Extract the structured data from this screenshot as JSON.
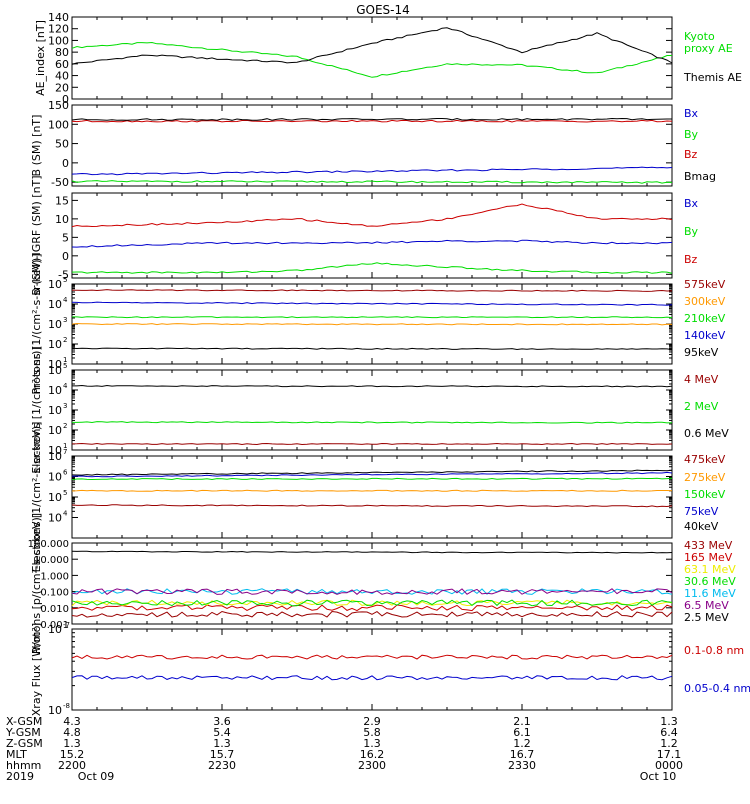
{
  "title": "GOES-14",
  "x_axis": {
    "tick_labels": [
      "2200",
      "2230",
      "2300",
      "2330",
      "0000"
    ],
    "date_labels": [
      "Oct 09",
      "Oct 10"
    ],
    "year": "2019",
    "row_labels": [
      "X-GSM",
      "Y-GSM",
      "Z-GSM",
      "MLT",
      "hhmm",
      "2019"
    ],
    "rows": {
      "X-GSM": [
        "4.3",
        "3.6",
        "2.9",
        "2.1",
        "1.3"
      ],
      "Y-GSM": [
        "4.8",
        "5.4",
        "5.8",
        "6.1",
        "6.4"
      ],
      "Z-GSM": [
        "1.3",
        "1.3",
        "1.3",
        "1.2",
        "1.2"
      ],
      "MLT": [
        "15.2",
        "15.7",
        "16.2",
        "16.7",
        "17.1"
      ],
      "hhmm": [
        "2200",
        "2230",
        "2300",
        "2330",
        "0000"
      ]
    }
  },
  "colors": {
    "black": "#000000",
    "green": "#00dd00",
    "red": "#cc0000",
    "blue": "#0000cc",
    "orange": "#ff9900",
    "darkred": "#990000",
    "cyan": "#00bbee",
    "yellow": "#eeee00",
    "purple": "#880088"
  },
  "chart_data": [
    {
      "type": "line",
      "ylabel": "AE_index [nT]",
      "ylim": [
        0,
        140
      ],
      "scale": "linear",
      "yticks": [
        "0",
        "20",
        "40",
        "60",
        "80",
        "100",
        "120",
        "140"
      ],
      "x": [
        "22:00",
        "22:15",
        "22:30",
        "22:45",
        "23:00",
        "23:15",
        "23:30",
        "23:45",
        "00:00"
      ],
      "series": [
        {
          "name": "Kyoto proxy AE",
          "color": "green",
          "values": [
            88,
            96,
            84,
            72,
            38,
            60,
            58,
            44,
            75
          ]
        },
        {
          "name": "Themis AE",
          "color": "black",
          "values": [
            60,
            75,
            68,
            62,
            95,
            122,
            80,
            112,
            62
          ]
        }
      ]
    },
    {
      "type": "line",
      "ylabel": "B (SM) [nT]",
      "ylim": [
        -60,
        150
      ],
      "scale": "linear",
      "yticks": [
        "-50",
        "0",
        "50",
        "100",
        "150"
      ],
      "x": [
        "22:00",
        "23:00",
        "00:00"
      ],
      "series": [
        {
          "name": "Bx",
          "color": "blue",
          "values": [
            -30,
            -22,
            -12
          ]
        },
        {
          "name": "By",
          "color": "green",
          "values": [
            -48,
            -49,
            -51
          ]
        },
        {
          "name": "Bz",
          "color": "red",
          "values": [
            108,
            108,
            108
          ]
        },
        {
          "name": "Bmag",
          "color": "black",
          "values": [
            112,
            113,
            113
          ]
        }
      ]
    },
    {
      "type": "line",
      "ylabel": "B (SM)-IGRF (SM) [nT]",
      "ylim": [
        -6,
        17
      ],
      "scale": "linear",
      "yticks": [
        "-5",
        "0",
        "5",
        "10",
        "15"
      ],
      "x": [
        "22:00",
        "22:15",
        "22:30",
        "22:45",
        "23:00",
        "23:15",
        "23:30",
        "23:45",
        "00:00"
      ],
      "series": [
        {
          "name": "Bx",
          "color": "blue",
          "values": [
            2.5,
            3,
            3.5,
            3.5,
            3.5,
            4,
            4,
            3.5,
            3.5
          ]
        },
        {
          "name": "By",
          "color": "green",
          "values": [
            -4.5,
            -4.5,
            -4.5,
            -4,
            -2,
            -3,
            -4,
            -4.5,
            -4.5
          ]
        },
        {
          "name": "Bz",
          "color": "red",
          "values": [
            8,
            8.5,
            9,
            10,
            8,
            10,
            14,
            10,
            10
          ]
        }
      ]
    },
    {
      "type": "line",
      "ylabel": "Protons [1/(cm²-s-sr-keV)]",
      "ylim": [
        10,
        100000
      ],
      "scale": "log",
      "yticks_exp": [
        1,
        2,
        3,
        4,
        5
      ],
      "x": [
        "22:00",
        "00:00"
      ],
      "series": [
        {
          "name": "575keV",
          "color": "darkred",
          "values": [
            50000,
            45000
          ]
        },
        {
          "name": "300keV",
          "color": "orange",
          "values": [
            1000,
            950
          ]
        },
        {
          "name": "210keV",
          "color": "green",
          "values": [
            2200,
            2200
          ]
        },
        {
          "name": "140keV",
          "color": "blue",
          "values": [
            12000,
            9000
          ]
        },
        {
          "name": "95keV",
          "color": "black",
          "values": [
            60,
            55
          ]
        }
      ]
    },
    {
      "type": "line",
      "ylabel": "Electrons [1/(cm²-s-sr)]",
      "ylim": [
        10,
        100000
      ],
      "scale": "log",
      "yticks_exp": [
        1,
        2,
        3,
        4,
        5
      ],
      "x": [
        "22:00",
        "00:00"
      ],
      "series": [
        {
          "name": "4 MeV",
          "color": "darkred",
          "values": [
            20,
            20
          ]
        },
        {
          "name": "2 MeV",
          "color": "green",
          "values": [
            250,
            230
          ]
        },
        {
          "name": "0.6 MeV",
          "color": "black",
          "values": [
            16000,
            15000
          ]
        }
      ]
    },
    {
      "type": "line",
      "ylabel": "Electrons [1/(cm²-s-sr-keV)]",
      "ylim": [
        1000,
        10000000
      ],
      "scale": "log",
      "yticks_exp": [
        4,
        5,
        6,
        7
      ],
      "x": [
        "22:00",
        "00:00"
      ],
      "series": [
        {
          "name": "475keV",
          "color": "darkred",
          "values": [
            40000,
            35000
          ]
        },
        {
          "name": "275keV",
          "color": "orange",
          "values": [
            200000,
            200000
          ]
        },
        {
          "name": "150keV",
          "color": "green",
          "values": [
            750000,
            780000
          ]
        },
        {
          "name": "75keV",
          "color": "blue",
          "values": [
            1000000,
            1500000
          ]
        },
        {
          "name": "40keV",
          "color": "black",
          "values": [
            1200000,
            2000000
          ]
        }
      ]
    },
    {
      "type": "line",
      "ylabel": "Protons [p/(cm²-s-sr-keV)]",
      "ylim": [
        0.001,
        100
      ],
      "scale": "log",
      "yticks": [
        "0.001",
        "0.010",
        "0.100",
        "1.000",
        "10.000",
        "100.000"
      ],
      "x": [
        "22:00",
        "00:00"
      ],
      "series": [
        {
          "name": "433 MeV",
          "color": "darkred",
          "values": [
            0.004,
            0.004
          ]
        },
        {
          "name": "165 MeV",
          "color": "red",
          "values": [
            0.01,
            0.01
          ]
        },
        {
          "name": "63.1 MeV",
          "color": "yellow",
          "values": [
            0.02,
            0.02
          ]
        },
        {
          "name": "30.6 MeV",
          "color": "green",
          "values": [
            0.02,
            0.02
          ]
        },
        {
          "name": "11.6 MeV",
          "color": "cyan",
          "values": [
            0.1,
            0.1
          ]
        },
        {
          "name": "6.5 MeV",
          "color": "purple",
          "values": [
            0.1,
            0.1
          ]
        },
        {
          "name": "2.5 MeV",
          "color": "black",
          "values": [
            30,
            25
          ]
        }
      ]
    },
    {
      "type": "line",
      "ylabel": "Xray Flux [W/m²]",
      "ylim": [
        1e-08,
        1e-07
      ],
      "scale": "log",
      "yticks_exp": [
        -8,
        -7
      ],
      "x": [
        "22:00",
        "00:00"
      ],
      "series": [
        {
          "name": "0.1-0.8 nm",
          "color": "red",
          "values": [
            4.5e-08,
            4.5e-08
          ]
        },
        {
          "name": "0.05-0.4 nm",
          "color": "blue",
          "values": [
            2.5e-08,
            2.5e-08
          ]
        }
      ]
    }
  ]
}
